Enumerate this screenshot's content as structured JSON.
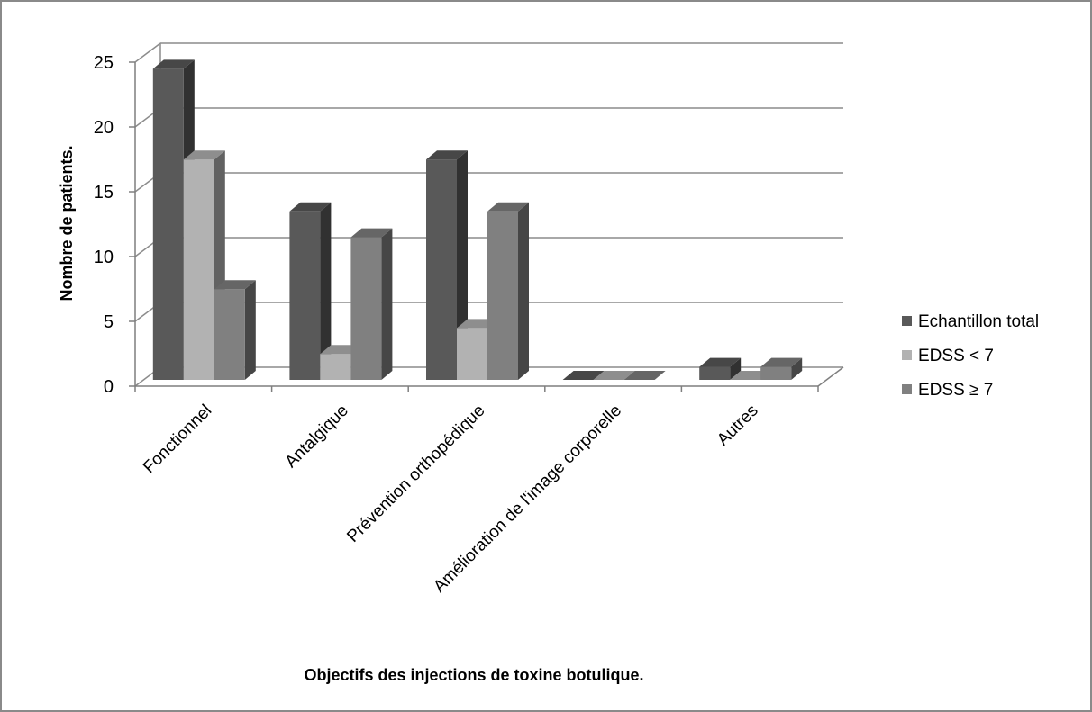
{
  "chart_data": {
    "type": "bar",
    "style": "3d-clustered-column",
    "categories": [
      "Fonctionnel",
      "Antalgique",
      "Prévention orthopédique",
      "Amélioration de l'image corporelle",
      "Autres"
    ],
    "series": [
      {
        "name": "Echantillon total",
        "values": [
          24,
          13,
          17,
          0,
          1
        ],
        "color": "#595959"
      },
      {
        "name": "EDSS < 7",
        "values": [
          17,
          2,
          4,
          0,
          0
        ],
        "color": "#b2b2b2"
      },
      {
        "name": "EDSS ≥ 7",
        "values": [
          7,
          11,
          13,
          0,
          1
        ],
        "color": "#808080"
      }
    ],
    "xlabel": "Objectifs des injections de toxine botulique.",
    "ylabel": "Nombre de patients.",
    "ylim": [
      0,
      25
    ],
    "yticks": [
      "0",
      "5",
      "10",
      "15",
      "20",
      "25"
    ],
    "grid": true,
    "legend_position": "right"
  }
}
